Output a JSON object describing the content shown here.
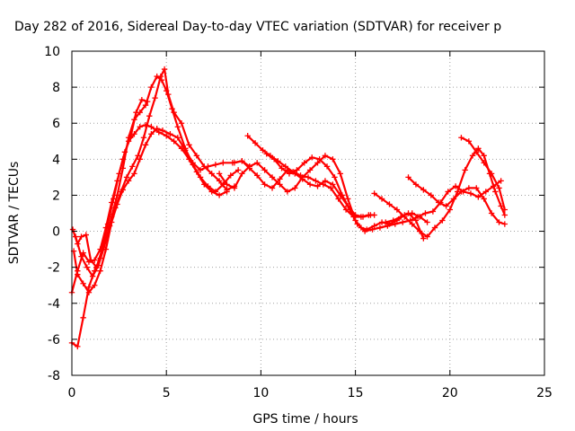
{
  "chart_data": {
    "type": "scatter",
    "title": "Day 282 of 2016, Sidereal Day-to-day VTEC variation (SDTVAR) for receiver p",
    "xlabel": "GPS time / hours",
    "ylabel": "SDTVAR / TECUs",
    "xlim": [
      0,
      25
    ],
    "ylim": [
      -8,
      10
    ],
    "xticks": [
      0,
      5,
      10,
      15,
      20,
      25
    ],
    "yticks": [
      -8,
      -6,
      -4,
      -2,
      0,
      2,
      4,
      6,
      8,
      10
    ],
    "grid": true,
    "marker": "plus",
    "color": "#ff0000",
    "series": [
      {
        "points": [
          [
            0.0,
            -6.2
          ],
          [
            0.3,
            -6.4
          ],
          [
            0.6,
            -4.8
          ],
          [
            0.9,
            -3.1
          ],
          [
            1.2,
            -2.2
          ],
          [
            1.5,
            -1.5
          ],
          [
            1.8,
            -0.5
          ],
          [
            2.1,
            0.8
          ],
          [
            2.4,
            2.0
          ],
          [
            2.7,
            3.5
          ],
          [
            3.0,
            5.2
          ],
          [
            3.3,
            6.2
          ],
          [
            3.6,
            6.6
          ],
          [
            3.9,
            7.0
          ],
          [
            4.2,
            8.0
          ],
          [
            4.5,
            8.6
          ],
          [
            4.75,
            8.4
          ],
          [
            5.0,
            7.8
          ],
          [
            5.3,
            6.8
          ],
          [
            5.6,
            5.8
          ],
          [
            6.0,
            4.6
          ],
          [
            6.4,
            3.7
          ],
          [
            6.8,
            3.0
          ],
          [
            7.2,
            2.5
          ],
          [
            7.6,
            2.2
          ],
          [
            8.0,
            2.6
          ],
          [
            8.4,
            3.1
          ],
          [
            8.8,
            3.4
          ]
        ]
      },
      {
        "points": [
          [
            0.1,
            -1.1
          ],
          [
            0.3,
            -2.4
          ],
          [
            0.6,
            -2.9
          ],
          [
            0.9,
            -3.4
          ],
          [
            1.2,
            -3.0
          ],
          [
            1.5,
            -2.2
          ],
          [
            1.8,
            -1.0
          ],
          [
            2.1,
            0.5
          ],
          [
            2.4,
            1.5
          ],
          [
            2.7,
            2.3
          ],
          [
            3.0,
            2.8
          ],
          [
            3.3,
            3.2
          ],
          [
            3.6,
            4.0
          ],
          [
            3.9,
            4.8
          ],
          [
            4.2,
            5.4
          ],
          [
            4.5,
            5.7
          ],
          [
            4.8,
            5.6
          ],
          [
            5.2,
            5.4
          ],
          [
            5.6,
            5.2
          ],
          [
            6.0,
            4.5
          ],
          [
            6.4,
            3.8
          ],
          [
            6.8,
            3.4
          ],
          [
            7.2,
            3.6
          ],
          [
            7.6,
            3.7
          ],
          [
            8.0,
            3.8
          ],
          [
            8.5,
            3.8
          ],
          [
            9.0,
            3.9
          ],
          [
            9.4,
            3.6
          ]
        ]
      },
      {
        "points": [
          [
            0.2,
            -0.3
          ],
          [
            0.5,
            -1.4
          ],
          [
            0.8,
            -2.0
          ],
          [
            1.1,
            -2.5
          ],
          [
            1.4,
            -1.9
          ],
          [
            1.7,
            -0.9
          ],
          [
            2.0,
            0.3
          ],
          [
            2.3,
            1.3
          ],
          [
            2.6,
            2.2
          ],
          [
            2.9,
            3.0
          ],
          [
            3.2,
            3.6
          ],
          [
            3.5,
            4.2
          ],
          [
            3.8,
            5.2
          ],
          [
            4.1,
            6.4
          ],
          [
            4.4,
            7.4
          ],
          [
            4.7,
            8.6
          ],
          [
            4.9,
            9.0
          ],
          [
            5.1,
            7.6
          ],
          [
            5.4,
            6.6
          ],
          [
            5.8,
            6.0
          ],
          [
            6.2,
            4.8
          ],
          [
            6.6,
            4.2
          ],
          [
            7.0,
            3.6
          ],
          [
            7.4,
            3.2
          ],
          [
            7.8,
            2.8
          ],
          [
            8.2,
            2.3
          ],
          [
            8.6,
            2.5
          ]
        ]
      },
      {
        "points": [
          [
            0.0,
            -3.4
          ],
          [
            0.3,
            -2.2
          ],
          [
            0.6,
            -1.2
          ],
          [
            0.9,
            -1.7
          ],
          [
            1.2,
            -1.6
          ],
          [
            1.5,
            -1.0
          ],
          [
            1.8,
            0.2
          ],
          [
            2.1,
            1.6
          ],
          [
            2.4,
            2.8
          ],
          [
            2.7,
            4.0
          ],
          [
            3.0,
            5.0
          ],
          [
            3.3,
            5.4
          ],
          [
            3.6,
            5.8
          ],
          [
            3.9,
            5.9
          ],
          [
            4.2,
            5.8
          ],
          [
            4.6,
            5.5
          ],
          [
            5.0,
            5.3
          ],
          [
            5.4,
            5.0
          ],
          [
            5.8,
            4.6
          ],
          [
            6.2,
            4.0
          ],
          [
            6.6,
            3.3
          ],
          [
            7.0,
            2.6
          ],
          [
            7.4,
            2.2
          ],
          [
            7.8,
            2.0
          ],
          [
            8.2,
            2.2
          ]
        ]
      },
      {
        "points": [
          [
            0.05,
            0.1
          ],
          [
            0.3,
            -0.7
          ],
          [
            0.5,
            -0.3
          ],
          [
            0.75,
            -0.2
          ],
          [
            1.0,
            -1.6
          ],
          [
            1.3,
            -2.0
          ],
          [
            1.6,
            -1.0
          ],
          [
            1.9,
            0.4
          ],
          [
            2.2,
            1.8
          ],
          [
            2.5,
            3.2
          ],
          [
            2.8,
            4.4
          ],
          [
            3.1,
            5.2
          ],
          [
            3.4,
            6.6
          ],
          [
            3.7,
            7.3
          ],
          [
            4.0,
            7.2
          ]
        ]
      },
      {
        "points": [
          [
            7.8,
            3.2
          ],
          [
            8.2,
            2.6
          ],
          [
            8.6,
            2.4
          ],
          [
            9.0,
            3.2
          ],
          [
            9.4,
            3.6
          ],
          [
            9.8,
            3.8
          ],
          [
            10.2,
            3.4
          ],
          [
            10.6,
            3.0
          ],
          [
            11.0,
            2.6
          ],
          [
            11.4,
            2.2
          ],
          [
            11.8,
            2.4
          ],
          [
            12.2,
            3.0
          ],
          [
            12.6,
            3.4
          ],
          [
            13.0,
            3.8
          ],
          [
            13.4,
            4.2
          ],
          [
            13.8,
            4.0
          ],
          [
            14.2,
            3.2
          ],
          [
            14.6,
            1.8
          ],
          [
            15.0,
            0.6
          ],
          [
            15.3,
            0.2
          ],
          [
            15.6,
            0.1
          ],
          [
            16.0,
            0.3
          ],
          [
            16.4,
            0.5
          ],
          [
            16.8,
            0.4
          ],
          [
            17.2,
            0.6
          ],
          [
            17.6,
            0.9
          ],
          [
            18.0,
            1.0
          ],
          [
            18.4,
            0.8
          ],
          [
            18.8,
            0.5
          ]
        ]
      },
      {
        "points": [
          [
            9.3,
            5.3
          ],
          [
            9.7,
            4.9
          ],
          [
            10.1,
            4.5
          ],
          [
            10.5,
            4.2
          ],
          [
            10.9,
            3.9
          ],
          [
            11.3,
            3.6
          ],
          [
            11.7,
            3.3
          ],
          [
            12.1,
            3.1
          ],
          [
            12.5,
            3.0
          ],
          [
            12.9,
            2.8
          ],
          [
            13.3,
            2.6
          ],
          [
            13.7,
            2.4
          ],
          [
            14.1,
            1.8
          ],
          [
            14.5,
            1.2
          ],
          [
            14.9,
            0.8
          ],
          [
            15.3,
            0.8
          ],
          [
            15.7,
            0.9
          ],
          [
            16.0,
            0.9
          ]
        ]
      },
      {
        "points": [
          [
            8.6,
            3.8
          ],
          [
            9.0,
            3.9
          ],
          [
            9.4,
            3.5
          ],
          [
            9.8,
            3.1
          ],
          [
            10.2,
            2.6
          ],
          [
            10.6,
            2.4
          ],
          [
            11.0,
            2.9
          ],
          [
            11.4,
            3.4
          ],
          [
            11.8,
            3.2
          ],
          [
            12.2,
            2.9
          ],
          [
            12.6,
            2.6
          ],
          [
            13.0,
            2.5
          ],
          [
            13.4,
            2.8
          ],
          [
            13.8,
            2.6
          ],
          [
            14.2,
            2.0
          ],
          [
            14.6,
            1.4
          ],
          [
            15.0,
            0.9
          ],
          [
            15.4,
            0.8
          ],
          [
            15.8,
            0.9
          ]
        ]
      },
      {
        "points": [
          [
            10.3,
            4.3
          ],
          [
            10.7,
            4.0
          ],
          [
            11.1,
            3.5
          ],
          [
            11.5,
            3.2
          ],
          [
            11.9,
            3.4
          ],
          [
            12.3,
            3.8
          ],
          [
            12.7,
            4.1
          ],
          [
            13.1,
            4.0
          ],
          [
            13.5,
            3.6
          ],
          [
            13.9,
            3.0
          ],
          [
            14.3,
            2.0
          ],
          [
            14.7,
            1.2
          ],
          [
            15.1,
            0.4
          ],
          [
            15.5,
            0.0
          ],
          [
            15.9,
            0.1
          ],
          [
            16.3,
            0.2
          ],
          [
            16.7,
            0.3
          ],
          [
            17.1,
            0.4
          ],
          [
            17.5,
            0.5
          ],
          [
            17.9,
            0.6
          ],
          [
            18.3,
            0.8
          ],
          [
            18.7,
            1.0
          ],
          [
            19.1,
            1.1
          ],
          [
            19.5,
            1.6
          ],
          [
            19.9,
            2.2
          ],
          [
            20.3,
            2.5
          ],
          [
            20.7,
            2.2
          ],
          [
            21.1,
            2.1
          ],
          [
            21.5,
            1.9
          ],
          [
            21.9,
            2.2
          ],
          [
            22.3,
            2.5
          ],
          [
            22.7,
            2.8
          ]
        ]
      },
      {
        "points": [
          [
            16.0,
            2.1
          ],
          [
            16.4,
            1.8
          ],
          [
            16.8,
            1.5
          ],
          [
            17.2,
            1.2
          ],
          [
            17.6,
            0.8
          ],
          [
            18.0,
            0.4
          ],
          [
            18.4,
            0.0
          ],
          [
            18.8,
            -0.3
          ],
          [
            19.2,
            0.2
          ],
          [
            19.6,
            0.6
          ],
          [
            20.0,
            1.2
          ],
          [
            20.4,
            2.2
          ],
          [
            20.8,
            3.4
          ],
          [
            21.2,
            4.2
          ],
          [
            21.5,
            4.6
          ],
          [
            21.8,
            4.2
          ],
          [
            22.1,
            3.2
          ],
          [
            22.4,
            2.2
          ],
          [
            22.7,
            1.4
          ],
          [
            22.9,
            0.9
          ]
        ]
      },
      {
        "points": [
          [
            17.8,
            3.0
          ],
          [
            18.2,
            2.6
          ],
          [
            18.6,
            2.3
          ],
          [
            19.0,
            2.0
          ],
          [
            19.4,
            1.6
          ],
          [
            19.8,
            1.4
          ],
          [
            20.2,
            1.8
          ],
          [
            20.6,
            2.2
          ],
          [
            21.0,
            2.4
          ],
          [
            21.4,
            2.4
          ],
          [
            21.8,
            1.8
          ],
          [
            22.2,
            1.0
          ],
          [
            22.6,
            0.5
          ],
          [
            22.9,
            0.4
          ]
        ]
      },
      {
        "points": [
          [
            20.6,
            5.2
          ],
          [
            21.0,
            5.0
          ],
          [
            21.4,
            4.4
          ],
          [
            21.8,
            3.8
          ],
          [
            22.2,
            3.2
          ],
          [
            22.6,
            2.4
          ],
          [
            22.9,
            1.2
          ]
        ]
      },
      {
        "points": [
          [
            16.6,
            0.5
          ],
          [
            17.0,
            0.6
          ],
          [
            17.4,
            0.8
          ],
          [
            17.8,
            1.0
          ],
          [
            18.2,
            0.6
          ],
          [
            18.6,
            -0.4
          ]
        ]
      }
    ]
  }
}
